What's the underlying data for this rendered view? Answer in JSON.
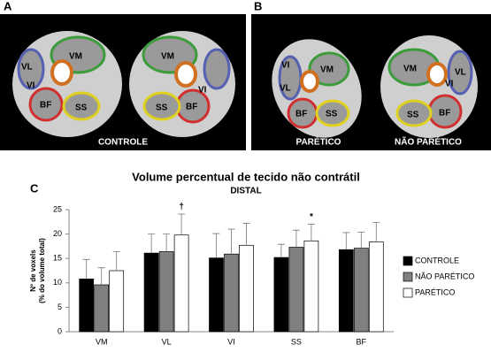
{
  "figure": {
    "panel_labels": [
      "A",
      "B",
      "C"
    ],
    "images": [
      {
        "captions": [
          "CONTROLE"
        ],
        "labels": [
          "VL",
          "VM",
          "VI",
          "BF",
          "SS",
          "VM",
          "VI",
          "SS",
          "BF"
        ]
      },
      {
        "captions": [
          "PARÉTICO",
          "NÃO PARÉTICO"
        ],
        "labels": [
          "VI",
          "VM",
          "VL",
          "BF",
          "SS",
          "VM",
          "VL",
          "VI",
          "SS",
          "BF"
        ]
      }
    ]
  },
  "chart_data": {
    "type": "bar",
    "title": "Volume percentual de tecido não contrátil",
    "subtitle": "DISTAL",
    "ylabel": [
      "Nº de voxels",
      "(% do volume total)"
    ],
    "categories": [
      "VM",
      "VL",
      "VI",
      "SS",
      "BF"
    ],
    "series": [
      {
        "name": "CONTROLE",
        "color": "#000000",
        "values": [
          10.8,
          16.1,
          15.1,
          15.2,
          16.8
        ],
        "errors": [
          4,
          3.9,
          5,
          2.7,
          3.5
        ]
      },
      {
        "name": "NÃO PARÉTICO",
        "color": "#808080",
        "values": [
          9.6,
          16.4,
          15.9,
          17.3,
          17.1
        ],
        "errors": [
          3.5,
          3.6,
          5.1,
          3.5,
          3.3
        ]
      },
      {
        "name": "PARÉTICO",
        "color": "#ffffff",
        "values": [
          12.5,
          19.8,
          17.7,
          18.6,
          18.4
        ],
        "errors": [
          3.9,
          4.3,
          4.5,
          3.4,
          4
        ]
      }
    ],
    "annotations": [
      {
        "label": "†",
        "category": "VL",
        "series": "PARÉTICO"
      },
      {
        "label": "*",
        "category": "SS",
        "series": "PARÉTICO"
      }
    ],
    "ylim": [
      0,
      25
    ],
    "yticks": [
      0,
      5,
      10,
      15,
      20,
      25
    ],
    "legend": "right"
  }
}
